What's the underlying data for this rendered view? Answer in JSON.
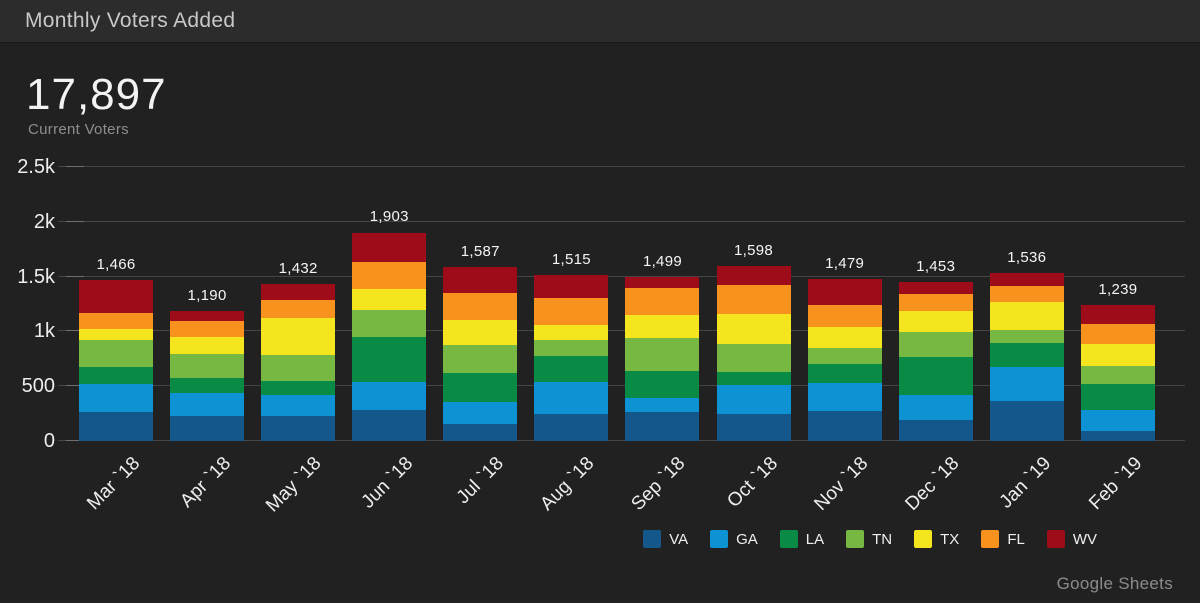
{
  "header": {
    "title": "Monthly Voters Added"
  },
  "kpi": {
    "value": "17,897",
    "label": "Current Voters"
  },
  "credit": {
    "text": "Google Sheets"
  },
  "colors": {
    "background": "#212121",
    "header_bar": "#2c2c2c",
    "gridline": "#454545",
    "axis_text": "#ededed"
  },
  "chart_data": {
    "type": "bar",
    "stacked": true,
    "title": "Monthly Voters Added",
    "xlabel": "",
    "ylabel": "",
    "ylim": [
      0,
      2500
    ],
    "grid": true,
    "legend_position": "bottom-right",
    "value_labels": true,
    "y_ticks": [
      {
        "value": 0,
        "label": "0"
      },
      {
        "value": 500,
        "label": "500"
      },
      {
        "value": 1000,
        "label": "1k"
      },
      {
        "value": 1500,
        "label": "1.5k"
      },
      {
        "value": 2000,
        "label": "2k"
      },
      {
        "value": 2500,
        "label": "2.5k"
      }
    ],
    "categories": [
      "Mar `18",
      "Apr `18",
      "May `18",
      "Jun `18",
      "Jul `18",
      "Aug `18",
      "Sep `18",
      "Oct `18",
      "Nov `18",
      "Dec `18",
      "Jan `19",
      "Feb `19"
    ],
    "series": [
      {
        "name": "VA",
        "color": "#14578a",
        "values": [
          262,
          231,
          225,
          285,
          157,
          250,
          262,
          250,
          278,
          196,
          364,
          87
        ]
      },
      {
        "name": "GA",
        "color": "#0d92d4",
        "values": [
          256,
          210,
          191,
          255,
          198,
          292,
          133,
          259,
          251,
          226,
          315,
          194
        ]
      },
      {
        "name": "LA",
        "color": "#0a8b45",
        "values": [
          160,
          130,
          133,
          405,
          262,
          232,
          247,
          123,
          175,
          346,
          219,
          238
        ]
      },
      {
        "name": "TN",
        "color": "#76b841",
        "values": [
          241,
          225,
          238,
          250,
          262,
          151,
          299,
          256,
          147,
          226,
          114,
          164
        ]
      },
      {
        "name": "TX",
        "color": "#f4e51f",
        "values": [
          99,
          154,
          333,
          193,
          225,
          133,
          210,
          268,
          193,
          189,
          253,
          198
        ]
      },
      {
        "name": "FL",
        "color": "#f6921d",
        "values": [
          154,
          148,
          170,
          245,
          247,
          247,
          247,
          272,
          196,
          156,
          148,
          185
        ]
      },
      {
        "name": "WV",
        "color": "#9e0c1a",
        "values": [
          294,
          92,
          142,
          270,
          236,
          210,
          101,
          170,
          239,
          114,
          123,
          173
        ]
      }
    ],
    "totals": [
      1466,
      1190,
      1432,
      1903,
      1587,
      1515,
      1499,
      1598,
      1479,
      1453,
      1536,
      1239
    ],
    "total_labels": [
      "1,466",
      "1,190",
      "1,432",
      "1,903",
      "1,587",
      "1,515",
      "1,499",
      "1,598",
      "1,479",
      "1,453",
      "1,536",
      "1,239"
    ]
  }
}
